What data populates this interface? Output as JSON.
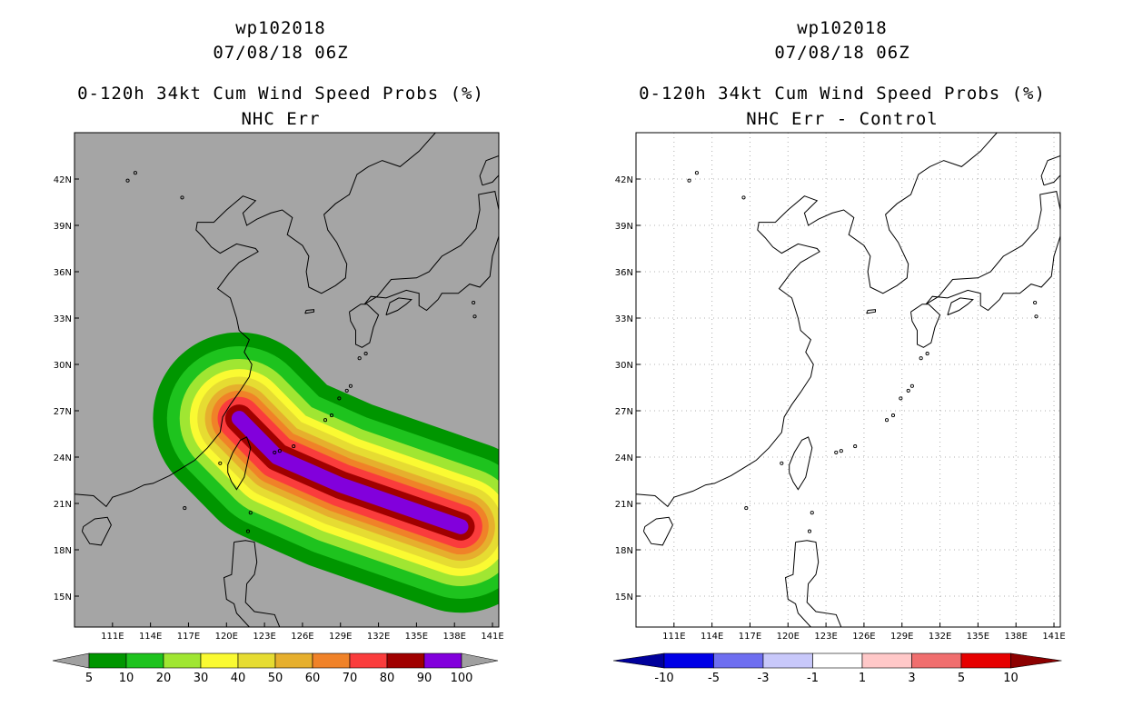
{
  "chart_data": [
    {
      "type": "map-contour",
      "storm_id": "wp102018",
      "datetime": "07/08/18 06Z",
      "title": "0-120h 34kt Cum Wind Speed Probs (%)",
      "subtitle": "NHC Err",
      "xlim": [
        108,
        141.5
      ],
      "ylim": [
        13,
        45
      ],
      "lon_ticks": [
        "111E",
        "114E",
        "117E",
        "120E",
        "123E",
        "126E",
        "129E",
        "132E",
        "135E",
        "138E",
        "141E"
      ],
      "lat_ticks": [
        "15N",
        "18N",
        "21N",
        "24N",
        "27N",
        "30N",
        "33N",
        "36N",
        "39N",
        "42N"
      ],
      "grid": false,
      "colorbar": {
        "labels": [
          "5",
          "10",
          "20",
          "30",
          "40",
          "50",
          "60",
          "70",
          "80",
          "90",
          "100"
        ],
        "colors": [
          "#009600",
          "#1ec31e",
          "#a0e632",
          "#fafa32",
          "#e6dc32",
          "#e6af2d",
          "#f08228",
          "#fa3c3c",
          "#a00000",
          "#8200dc"
        ],
        "extend_colors": [
          "#a0a0a0",
          "#a0a0a0"
        ]
      },
      "swath": {
        "track": [
          [
            138.5,
            19.5
          ],
          [
            129,
            22.2
          ],
          [
            124,
            24
          ],
          [
            121,
            26.5
          ]
        ],
        "levels": [
          {
            "pct": 5,
            "color": "#009600",
            "halfwidth_deg": 6.8
          },
          {
            "pct": 10,
            "color": "#1ec31e",
            "halfwidth_deg": 5.7
          },
          {
            "pct": 20,
            "color": "#a0e632",
            "halfwidth_deg": 4.7
          },
          {
            "pct": 30,
            "color": "#fafa32",
            "halfwidth_deg": 3.9
          },
          {
            "pct": 40,
            "color": "#e6dc32",
            "halfwidth_deg": 3.3
          },
          {
            "pct": 50,
            "color": "#e6af2d",
            "halfwidth_deg": 2.7
          },
          {
            "pct": 60,
            "color": "#f08228",
            "halfwidth_deg": 2.2
          },
          {
            "pct": 70,
            "color": "#fa3c3c",
            "halfwidth_deg": 1.7
          },
          {
            "pct": 80,
            "color": "#a00000",
            "halfwidth_deg": 1.1
          },
          {
            "pct": 90,
            "color": "#8200dc",
            "halfwidth_deg": 0.6
          }
        ]
      }
    },
    {
      "type": "map-contour",
      "storm_id": "wp102018",
      "datetime": "07/08/18 06Z",
      "title": "0-120h 34kt Cum Wind Speed Probs (%)",
      "subtitle": "NHC Err - Control",
      "xlim": [
        108,
        141.5
      ],
      "ylim": [
        13,
        45
      ],
      "lon_ticks": [
        "111E",
        "114E",
        "117E",
        "120E",
        "123E",
        "126E",
        "129E",
        "132E",
        "135E",
        "138E",
        "141E"
      ],
      "lat_ticks": [
        "15N",
        "18N",
        "21N",
        "24N",
        "27N",
        "30N",
        "33N",
        "36N",
        "39N",
        "42N"
      ],
      "grid": true,
      "colorbar": {
        "labels": [
          "-10",
          "-5",
          "-3",
          "-1",
          "1",
          "3",
          "5",
          "10"
        ],
        "colors": [
          "#0000e6",
          "#6e6ef0",
          "#c8c8fa",
          "#ffffff",
          "#ffc8c8",
          "#f06e6e",
          "#e60000"
        ],
        "extend_colors": [
          "#00009b",
          "#8c0000"
        ]
      }
    }
  ]
}
